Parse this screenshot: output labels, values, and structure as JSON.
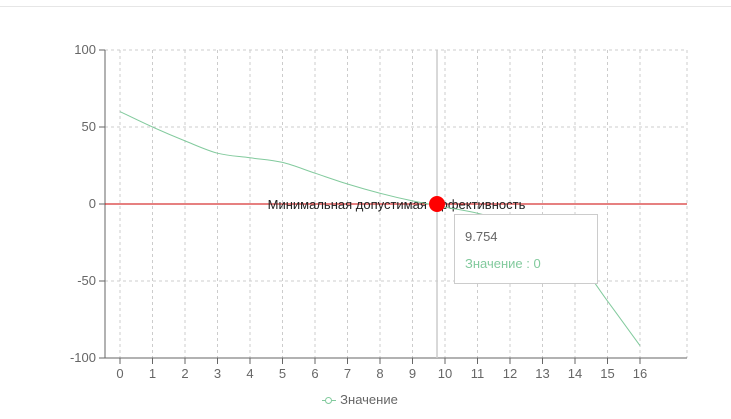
{
  "chart_data": {
    "type": "line",
    "x": [
      0,
      1,
      2,
      3,
      4,
      5,
      6,
      7,
      8,
      9,
      10,
      11,
      12,
      13,
      14,
      15,
      16
    ],
    "xticks": [
      "0",
      "1",
      "2",
      "3",
      "4",
      "5",
      "6",
      "7",
      "8",
      "9",
      "10",
      "11",
      "12",
      "13",
      "14",
      "15",
      "16"
    ],
    "yticks": [
      "100",
      "50",
      "0",
      "-50",
      "-100"
    ],
    "ylim": [
      -100,
      100
    ],
    "grid": true,
    "series": [
      {
        "name": "Значение",
        "color": "#82ca9d",
        "values": [
          60,
          50,
          41,
          33,
          30,
          27,
          20,
          13,
          7,
          2,
          -2,
          -6,
          -12,
          -22,
          -35,
          -63,
          -92
        ]
      }
    ],
    "reference_line": {
      "y": 0,
      "label": "Минимальная допустимая эффективность",
      "color": "#cc0000"
    },
    "active_point": {
      "x": 9.754,
      "y": 0,
      "color": "#ff0000"
    },
    "tooltip": {
      "label": "9.754",
      "value_text": "Значение : 0"
    },
    "legend": {
      "placement": "bottom",
      "label": "Значение"
    }
  }
}
